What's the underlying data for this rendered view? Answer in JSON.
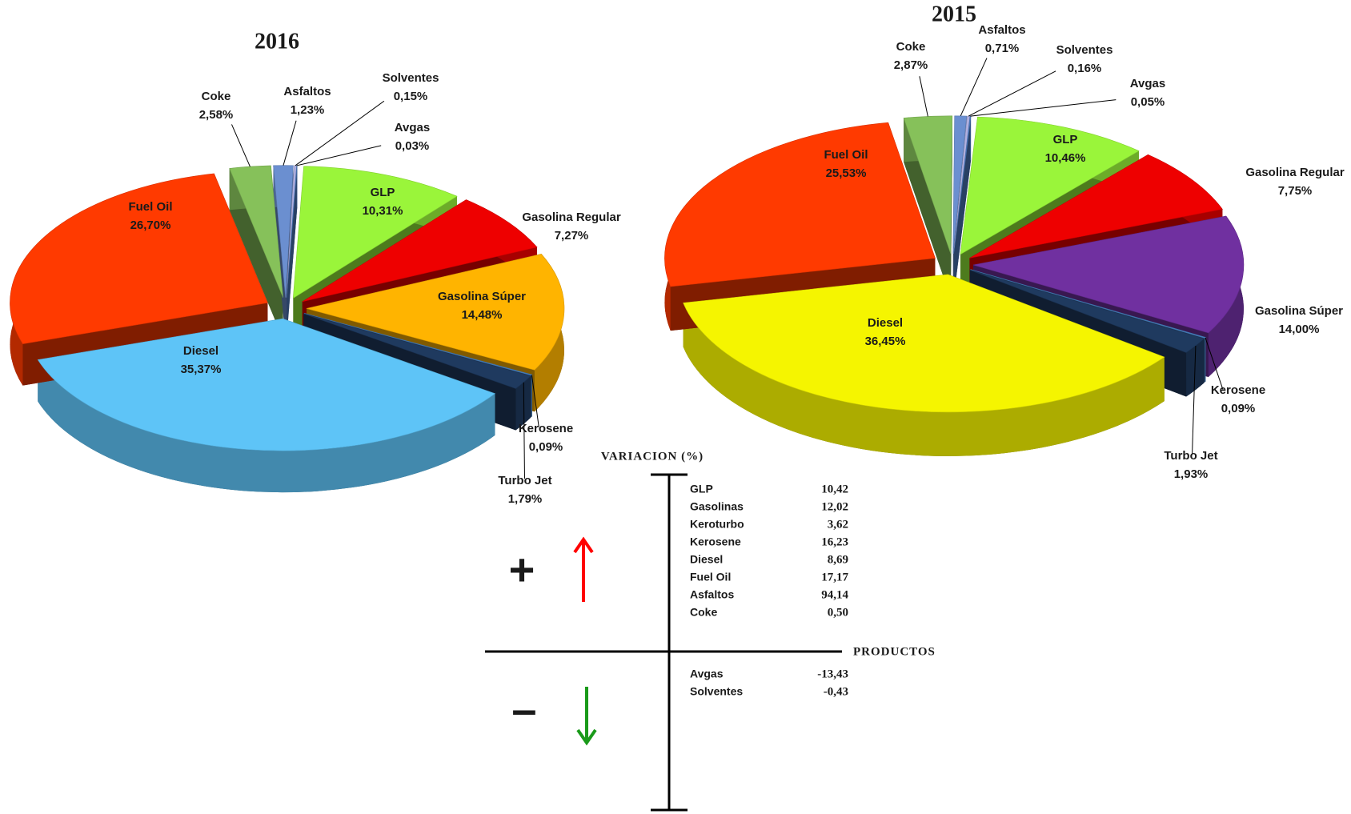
{
  "chart_data": [
    {
      "type": "pie",
      "title": "2016",
      "categories": [
        "Coke",
        "Asfaltos",
        "Solventes",
        "Avgas",
        "GLP",
        "Gasolina Regular",
        "Gasolina Súper",
        "Kerosene",
        "Turbo Jet",
        "Diesel",
        "Fuel Oil"
      ],
      "values": [
        2.58,
        1.23,
        0.15,
        0.03,
        10.31,
        7.27,
        14.48,
        0.09,
        1.79,
        35.37,
        26.7
      ],
      "value_labels": [
        "2,58%",
        "1,23%",
        "0,15%",
        "0,03%",
        "10,31%",
        "7,27%",
        "14,48%",
        "0,09%",
        "1,79%",
        "35,37%",
        "26,70%"
      ],
      "colors": [
        "#86c15a",
        "#6b8fd0",
        "#b0b0e0",
        "#4f7fc8",
        "#9af53a",
        "#ee0000",
        "#ffb400",
        "#4a86c8",
        "#1f3a5f",
        "#5ec4f7",
        "#ff3a00"
      ]
    },
    {
      "type": "pie",
      "title": "2015",
      "categories": [
        "Coke",
        "Asfaltos",
        "Solventes",
        "Avgas",
        "GLP",
        "Gasolina Regular",
        "Gasolina Súper",
        "Kerosene",
        "Turbo Jet",
        "Diesel",
        "Fuel Oil"
      ],
      "values": [
        2.87,
        0.71,
        0.16,
        0.05,
        10.46,
        7.75,
        14.0,
        0.09,
        1.93,
        36.45,
        25.53
      ],
      "value_labels": [
        "2,87%",
        "0,71%",
        "0,16%",
        "0,05%",
        "10,46%",
        "7,75%",
        "14,00%",
        "0,09%",
        "1,93%",
        "36,45%",
        "25,53%"
      ],
      "colors": [
        "#86c15a",
        "#6b8fd0",
        "#b0b0e0",
        "#4f7fc8",
        "#9af53a",
        "#ee0000",
        "#7030a0",
        "#4a86c8",
        "#1f3a5f",
        "#f5f500",
        "#ff3a00"
      ]
    }
  ],
  "variation": {
    "title": "VARIACION    (%)",
    "axis_label": "PRODUCTOS",
    "plus_sign": "+",
    "minus_sign": "–",
    "positive": {
      "categories": [
        "GLP",
        "Gasolinas",
        "Keroturbo",
        "Kerosene",
        "Diesel",
        "Fuel Oil",
        "Asfaltos",
        "Coke"
      ],
      "values": [
        "10,42",
        "12,02",
        "3,62",
        "16,23",
        "8,69",
        "17,17",
        "94,14",
        "0,50"
      ]
    },
    "negative": {
      "categories": [
        "Avgas",
        "Solventes"
      ],
      "values": [
        "-13,43",
        "-0,43"
      ]
    }
  }
}
